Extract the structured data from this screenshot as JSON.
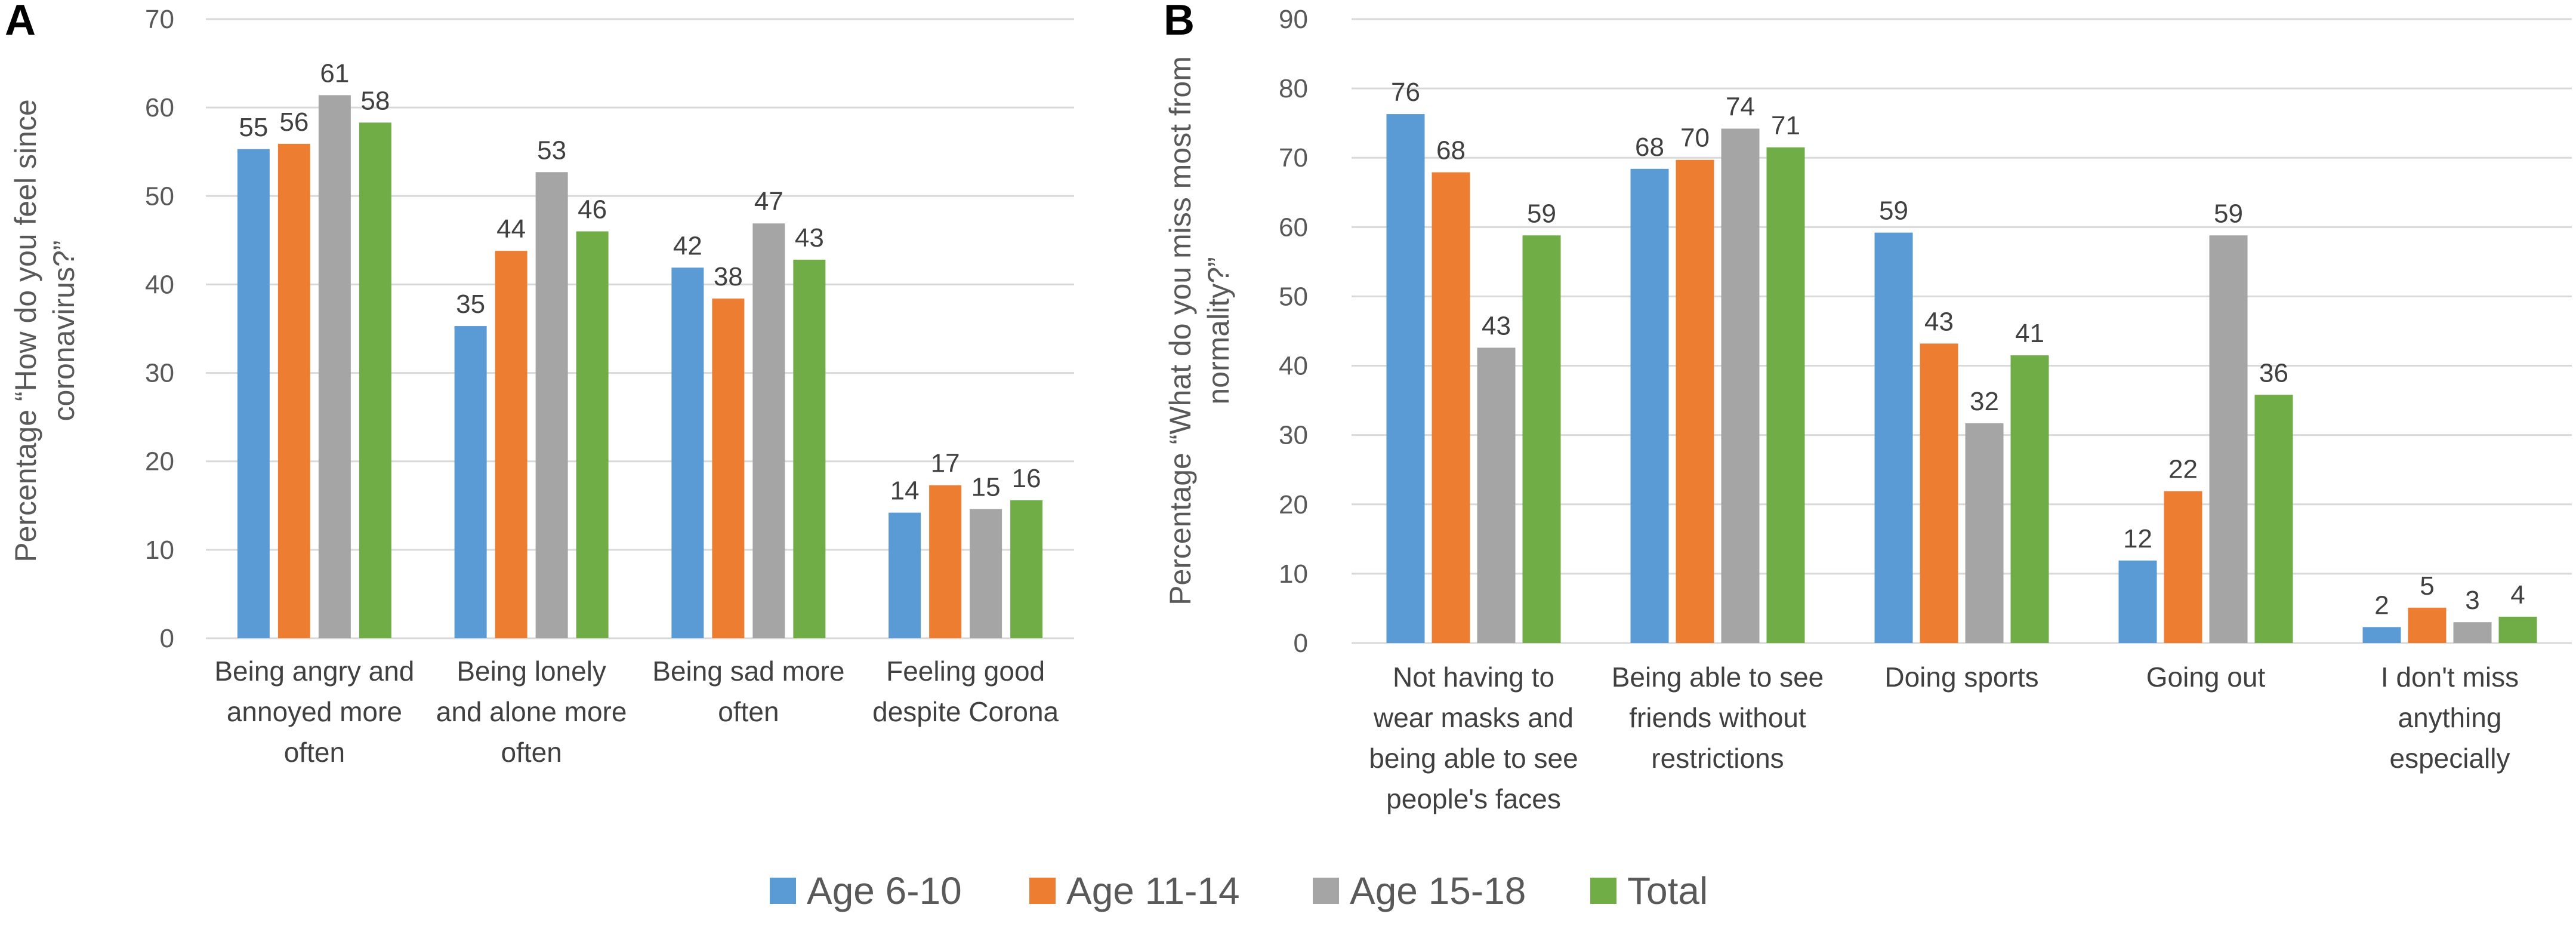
{
  "chart_data": [
    {
      "panel": "A",
      "type": "bar",
      "ylabel_lines": [
        "Percentage “How do you feel since",
        "coronavirus?”"
      ],
      "ylim": [
        0,
        70
      ],
      "yticks": [
        0,
        10,
        20,
        30,
        40,
        50,
        60,
        70
      ],
      "categories": [
        [
          "Being angry and",
          "annoyed more",
          "often"
        ],
        [
          "Being lonely",
          "and alone more",
          "often"
        ],
        [
          "Being sad more",
          "often"
        ],
        [
          "Feeling good",
          "despite Corona"
        ]
      ],
      "series": [
        {
          "name": "Age 6-10",
          "values": [
            55,
            35,
            42,
            14
          ],
          "exact": [
            55.3,
            35.3,
            41.9,
            14.2
          ]
        },
        {
          "name": "Age 11-14",
          "values": [
            56,
            44,
            38,
            17
          ],
          "exact": [
            55.9,
            43.8,
            38.4,
            17.3
          ]
        },
        {
          "name": "Age 15-18",
          "values": [
            61,
            53,
            47,
            15
          ],
          "exact": [
            61.4,
            52.7,
            46.9,
            14.6
          ]
        },
        {
          "name": "Total",
          "values": [
            58,
            46,
            43,
            16
          ],
          "exact": [
            58.3,
            46.0,
            42.8,
            15.6
          ]
        }
      ]
    },
    {
      "panel": "B",
      "type": "bar",
      "ylabel_lines": [
        "Percentage “What do you miss most from",
        "normality?”"
      ],
      "ylim": [
        0,
        90
      ],
      "yticks": [
        0,
        10,
        20,
        30,
        40,
        50,
        60,
        70,
        80,
        90
      ],
      "categories": [
        [
          "Not having to",
          "wear masks and",
          "being able to see",
          "people's faces"
        ],
        [
          "Being able to see",
          "friends without",
          "restrictions"
        ],
        [
          "Doing sports"
        ],
        [
          "Going out"
        ],
        [
          "I don't miss",
          "anything",
          "especially"
        ]
      ],
      "series": [
        {
          "name": "Age 6-10",
          "values": [
            76,
            68,
            59,
            12,
            2
          ],
          "exact": [
            76.3,
            68.4,
            59.2,
            11.9,
            2.3
          ]
        },
        {
          "name": "Age 11-14",
          "values": [
            68,
            70,
            43,
            22,
            5
          ],
          "exact": [
            67.9,
            69.7,
            43.2,
            21.9,
            5.1
          ]
        },
        {
          "name": "Age 15-18",
          "values": [
            43,
            74,
            32,
            59,
            3
          ],
          "exact": [
            42.6,
            74.2,
            31.7,
            58.8,
            3.0
          ]
        },
        {
          "name": "Total",
          "values": [
            59,
            71,
            41,
            36,
            4
          ],
          "exact": [
            58.8,
            71.5,
            41.5,
            35.8,
            3.8
          ]
        }
      ]
    }
  ],
  "legend": [
    {
      "name": "Age 6-10",
      "color": "#5b9bd5"
    },
    {
      "name": "Age 11-14",
      "color": "#ed7d31"
    },
    {
      "name": "Age 15-18",
      "color": "#a5a5a5"
    },
    {
      "name": "Total",
      "color": "#70ad47"
    }
  ]
}
